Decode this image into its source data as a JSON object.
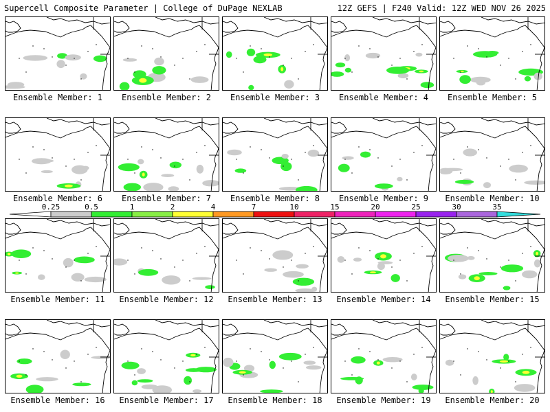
{
  "header": {
    "left": "Supercell Composite Parameter | College of DuPage NEXLAB",
    "right": "12Z GEFS | F240 Valid: 12Z WED NOV 26 2025"
  },
  "member_label_prefix": "Ensemble Member: ",
  "members": [
    1,
    2,
    3,
    4,
    5,
    6,
    7,
    8,
    9,
    10,
    11,
    12,
    13,
    14,
    15,
    16,
    17,
    18,
    19,
    20
  ],
  "colorbar": {
    "labels": [
      "0.25",
      "0.5",
      "1",
      "2",
      "4",
      "7",
      "10",
      "15",
      "20",
      "25",
      "30",
      "35"
    ],
    "colors": [
      "#cccccc",
      "#33ee33",
      "#88ee44",
      "#ffff33",
      "#ff9922",
      "#ee1111",
      "#ee2266",
      "#ee22bb",
      "#ee22ee",
      "#9922ee",
      "#aa66dd",
      "#33dddd"
    ]
  },
  "colors": {
    "background": "#ffffff",
    "coastline": "#000000",
    "low_fill": "#cccccc",
    "mid_fill": "#33ee33",
    "high_fill": "#ffff33"
  }
}
